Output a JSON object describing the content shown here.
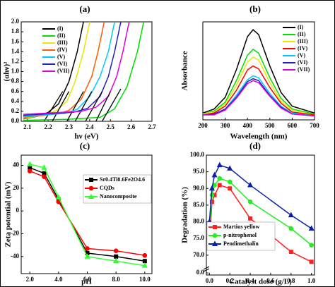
{
  "chart_data": [
    {
      "type": "line",
      "title": "(a)",
      "x_label": "hν (eV)",
      "y_label": "(αhν)²",
      "xlim": [
        2.07,
        2.7
      ],
      "xticks": [
        2.1,
        2.2,
        2.3,
        2.4,
        2.5,
        2.6,
        2.7
      ],
      "ylim": [
        0,
        2.0
      ],
      "yticks": [
        {
          "value": 0,
          "label": "0.0"
        },
        0.2,
        0.4,
        0.6,
        0.8,
        {
          "value": 1,
          "label": "1.0"
        },
        1.2,
        1.4,
        1.6,
        1.8,
        {
          "value": 2,
          "label": "2.0"
        }
      ],
      "legend": "upper left",
      "series": [
        {
          "name": "(I)",
          "color": "#000000",
          "x": [
            2.08,
            2.15,
            2.2,
            2.25,
            2.3,
            2.34,
            2.37
          ],
          "values": [
            0.05,
            0.1,
            0.18,
            0.35,
            0.8,
            1.4,
            2.0
          ],
          "tangent": [
            [
              2.18,
              0
            ],
            [
              2.27,
              0.6
            ]
          ]
        },
        {
          "name": "(II)",
          "color": "#00dd00",
          "x": [
            2.08,
            2.3,
            2.45,
            2.52,
            2.58,
            2.63,
            2.66
          ],
          "values": [
            0.02,
            0.04,
            0.08,
            0.25,
            0.7,
            1.4,
            2.0
          ],
          "tangent": [
            [
              2.46,
              0
            ],
            [
              2.55,
              0.65
            ]
          ]
        },
        {
          "name": "(III)",
          "color": "#e8e800",
          "x": [
            2.08,
            2.18,
            2.24,
            2.29,
            2.33,
            2.37,
            2.4
          ],
          "values": [
            0.06,
            0.12,
            0.22,
            0.4,
            0.8,
            1.4,
            2.0
          ],
          "tangent": [
            [
              2.22,
              0
            ],
            [
              2.3,
              0.6
            ]
          ]
        },
        {
          "name": "(IV)",
          "color": "#ff5a00",
          "x": [
            2.08,
            2.25,
            2.3,
            2.36,
            2.41,
            2.44,
            2.47
          ],
          "values": [
            0.08,
            0.15,
            0.22,
            0.45,
            0.9,
            1.4,
            2.0
          ],
          "tangent": [
            [
              2.29,
              0
            ],
            [
              2.37,
              0.6
            ]
          ]
        },
        {
          "name": "(V)",
          "color": "#00c8ff",
          "x": [
            2.08,
            2.28,
            2.34,
            2.4,
            2.45,
            2.49,
            2.52
          ],
          "values": [
            0.1,
            0.16,
            0.24,
            0.5,
            0.9,
            1.4,
            2.0
          ],
          "tangent": [
            [
              2.33,
              0
            ],
            [
              2.41,
              0.6
            ]
          ]
        },
        {
          "name": "(VI)",
          "color": "#2020c0",
          "x": [
            2.08,
            2.32,
            2.39,
            2.45,
            2.49,
            2.52,
            2.55
          ],
          "values": [
            0.12,
            0.18,
            0.26,
            0.5,
            0.9,
            1.4,
            2.0
          ],
          "tangent": [
            [
              2.38,
              0
            ],
            [
              2.46,
              0.6
            ]
          ]
        },
        {
          "name": "(VII)",
          "color": "#e000e0",
          "x": [
            2.08,
            2.36,
            2.43,
            2.49,
            2.53,
            2.56,
            2.59
          ],
          "values": [
            0.14,
            0.2,
            0.28,
            0.5,
            0.9,
            1.4,
            2.0
          ],
          "tangent": [
            [
              2.43,
              0
            ],
            [
              2.5,
              0.6
            ]
          ]
        }
      ]
    },
    {
      "type": "line",
      "title": "(b)",
      "x_label": "Wavelength (nm)",
      "y_label": "Absorbance",
      "xlim": [
        200,
        700
      ],
      "xticks": [
        200,
        300,
        400,
        500,
        600,
        700
      ],
      "ylim": [
        0,
        1
      ],
      "legend": "upper right",
      "x": [
        200,
        250,
        300,
        350,
        400,
        425,
        450,
        500,
        550,
        600,
        700
      ],
      "series": [
        {
          "name": "(I)",
          "color": "#000000",
          "values": [
            0.07,
            0.11,
            0.23,
            0.51,
            0.85,
            0.92,
            0.87,
            0.55,
            0.28,
            0.14,
            0.07
          ]
        },
        {
          "name": "(II)",
          "color": "#00dd00",
          "values": [
            0.06,
            0.09,
            0.18,
            0.4,
            0.66,
            0.72,
            0.68,
            0.43,
            0.22,
            0.11,
            0.06
          ]
        },
        {
          "name": "(III)",
          "color": "#e8e800",
          "values": [
            0.06,
            0.08,
            0.16,
            0.35,
            0.59,
            0.64,
            0.61,
            0.38,
            0.19,
            0.1,
            0.05
          ]
        },
        {
          "name": "(IV)",
          "color": "#ff0000",
          "values": [
            0.05,
            0.07,
            0.14,
            0.3,
            0.51,
            0.55,
            0.52,
            0.33,
            0.17,
            0.08,
            0.05
          ]
        },
        {
          "name": "(V)",
          "color": "#00c8ff",
          "values": [
            0.05,
            0.06,
            0.11,
            0.25,
            0.41,
            0.45,
            0.43,
            0.27,
            0.14,
            0.07,
            0.04
          ]
        },
        {
          "name": "(VI)",
          "color": "#2020c0",
          "values": [
            0.05,
            0.06,
            0.11,
            0.23,
            0.39,
            0.42,
            0.4,
            0.25,
            0.13,
            0.06,
            0.04
          ]
        },
        {
          "name": "(VII)",
          "color": "#e000e0",
          "values": [
            0.05,
            0.05,
            0.1,
            0.22,
            0.37,
            0.4,
            0.38,
            0.24,
            0.12,
            0.06,
            0.04
          ]
        }
      ]
    },
    {
      "type": "line",
      "title": "(c)",
      "x_label": "pH",
      "y_label": "Zeta potential (mV)",
      "xlim": [
        1.4,
        10.5
      ],
      "xticks": [
        {
          "value": 2,
          "label": "2.0"
        },
        {
          "value": 4,
          "label": "4.0"
        },
        {
          "value": 6,
          "label": "6.0"
        },
        {
          "value": 8,
          "label": "8.0"
        },
        {
          "value": 10,
          "label": "10.0"
        }
      ],
      "ylim": [
        -55,
        49
      ],
      "yticks": [
        -40,
        -20,
        0,
        20,
        40
      ],
      "legend": "right",
      "x": [
        2,
        3,
        4,
        6,
        8,
        10
      ],
      "series": [
        {
          "name": "Sr0.4Ti0.6Fe2O4.6",
          "color": "#000000",
          "marker": "square",
          "values": [
            38,
            33,
            10,
            -37,
            -40,
            -44
          ]
        },
        {
          "name": "CQDs",
          "color": "#ff0000",
          "marker": "circle",
          "values": [
            35,
            30,
            8,
            -33,
            -35,
            -39
          ]
        },
        {
          "name": "Nanocomposite",
          "color": "#33ff33",
          "marker": "triangle",
          "values": [
            41,
            38,
            12,
            -40,
            -44,
            -48
          ]
        }
      ]
    },
    {
      "type": "line",
      "title": "(d)",
      "x_label": "Catalyst dose (g/L)",
      "y_label": "Degradation (%)",
      "xlim": [
        -0.03,
        1.03
      ],
      "xticks": [
        {
          "value": 0,
          "label": "0.0"
        },
        0.2,
        0.4,
        0.6,
        0.8,
        {
          "value": 1,
          "label": "1.0"
        }
      ],
      "ylim": [
        67,
        100
      ],
      "axis_break": true,
      "yticks": [
        {
          "value": 0,
          "label": "0.0"
        },
        {
          "value": 70,
          "label": "70.0"
        },
        {
          "value": 75,
          "label": "75.0"
        },
        {
          "value": 80,
          "label": "80.0"
        },
        {
          "value": 85,
          "label": "85.0"
        },
        {
          "value": 90,
          "label": "90.0"
        },
        {
          "value": 95,
          "label": "95.0"
        },
        {
          "value": 100,
          "label": "100.0"
        }
      ],
      "legend": "lower left",
      "x": [
        0,
        0.025,
        0.05,
        0.1,
        0.2,
        0.4,
        0.8,
        1.0
      ],
      "series": [
        {
          "name": "Martius yellow",
          "color": "#ff2020",
          "marker": "square",
          "values": [
            74,
            86,
            88,
            91,
            90,
            81,
            71,
            68
          ]
        },
        {
          "name": "p-nitrophenol",
          "color": "#22ee22",
          "marker": "circle",
          "values": [
            77,
            88,
            91,
            93,
            92,
            86,
            78,
            73
          ]
        },
        {
          "name": "Pendimethalin",
          "color": "#0a1fa8",
          "marker": "triangle",
          "values": [
            80,
            90,
            94,
            97,
            96,
            91,
            82,
            78
          ]
        }
      ]
    }
  ]
}
